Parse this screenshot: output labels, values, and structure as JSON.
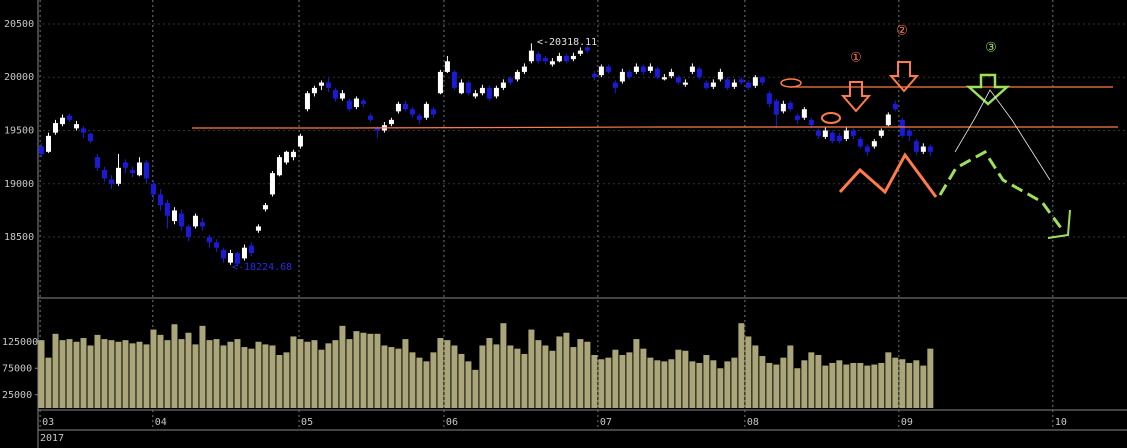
{
  "chart_data": {
    "type": "candlestick",
    "ylim": [
      17928,
      20725
    ],
    "yticks": [
      18500,
      19000,
      19500,
      20000,
      20500
    ],
    "xlim": [
      -0.5,
      155.1
    ],
    "xticks": [
      {
        "value": -0.2,
        "label": "03"
      },
      {
        "value": 15.9,
        "label": "04"
      },
      {
        "value": 36.8,
        "label": "05"
      },
      {
        "value": 57.5,
        "label": "06"
      },
      {
        "value": 79.5,
        "label": "07"
      },
      {
        "value": 100.5,
        "label": "08"
      },
      {
        "value": 122.5,
        "label": "09"
      },
      {
        "value": 144.5,
        "label": "10"
      }
    ],
    "year_label": "2017",
    "grid": true,
    "up_color": "#ffffff",
    "down_color": "#1a1ad8",
    "candles": [
      [
        19350,
        19380,
        19250,
        19280
      ],
      [
        19300,
        19480,
        19290,
        19450
      ],
      [
        19480,
        19600,
        19460,
        19570
      ],
      [
        19560,
        19650,
        19540,
        19620
      ],
      [
        19640,
        19660,
        19580,
        19600
      ],
      [
        19520,
        19590,
        19500,
        19560
      ],
      [
        19520,
        19540,
        19430,
        19480
      ],
      [
        19470,
        19480,
        19380,
        19400
      ],
      [
        19250,
        19280,
        19120,
        19150
      ],
      [
        19130,
        19160,
        19020,
        19050
      ],
      [
        19040,
        19080,
        18950,
        19000
      ],
      [
        19000,
        19280,
        18980,
        19150
      ],
      [
        19200,
        19230,
        19100,
        19150
      ],
      [
        19130,
        19160,
        19060,
        19100
      ],
      [
        19080,
        19250,
        19070,
        19200
      ],
      [
        19200,
        19220,
        19000,
        19050
      ],
      [
        19000,
        19030,
        18850,
        18900
      ],
      [
        18900,
        18950,
        18750,
        18800
      ],
      [
        18820,
        18850,
        18580,
        18700
      ],
      [
        18650,
        18780,
        18620,
        18750
      ],
      [
        18720,
        18760,
        18560,
        18600
      ],
      [
        18600,
        18620,
        18460,
        18500
      ],
      [
        18600,
        18720,
        18580,
        18700
      ],
      [
        18640,
        18680,
        18560,
        18600
      ],
      [
        18500,
        18520,
        18400,
        18450
      ],
      [
        18450,
        18480,
        18360,
        18400
      ],
      [
        18380,
        18400,
        18260,
        18300
      ],
      [
        18260,
        18380,
        18240,
        18350
      ],
      [
        18350,
        18360,
        18224.68,
        18250
      ],
      [
        18300,
        18430,
        18280,
        18400
      ],
      [
        18420,
        18450,
        18320,
        18350
      ],
      [
        18560,
        18620,
        18540,
        18600
      ],
      [
        18760,
        18820,
        18740,
        18800
      ],
      [
        18900,
        19120,
        18880,
        19100
      ],
      [
        19080,
        19270,
        19070,
        19250
      ],
      [
        19200,
        19310,
        19180,
        19300
      ],
      [
        19250,
        19320,
        19220,
        19300
      ],
      [
        19350,
        19470,
        19330,
        19450
      ],
      [
        19700,
        19870,
        19680,
        19850
      ],
      [
        19850,
        19920,
        19820,
        19900
      ],
      [
        19920,
        19970,
        19880,
        19950
      ],
      [
        19950,
        19990,
        19860,
        19900
      ],
      [
        19880,
        19900,
        19770,
        19800
      ],
      [
        19800,
        19880,
        19780,
        19850
      ],
      [
        19780,
        19800,
        19680,
        19700
      ],
      [
        19720,
        19820,
        19700,
        19800
      ],
      [
        19780,
        19800,
        19720,
        19750
      ],
      [
        19640,
        19660,
        19580,
        19600
      ],
      [
        19520,
        19540,
        19430,
        19500
      ],
      [
        19500,
        19580,
        19480,
        19550
      ],
      [
        19560,
        19620,
        19540,
        19600
      ],
      [
        19680,
        19770,
        19660,
        19750
      ],
      [
        19750,
        19780,
        19680,
        19700
      ],
      [
        19700,
        19720,
        19620,
        19650
      ],
      [
        19640,
        19660,
        19560,
        19600
      ],
      [
        19620,
        19770,
        19600,
        19750
      ],
      [
        19700,
        19720,
        19620,
        19650
      ],
      [
        19850,
        20070,
        19840,
        20050
      ],
      [
        20050,
        20200,
        20040,
        20150
      ],
      [
        20050,
        20070,
        19880,
        19900
      ],
      [
        19850,
        19980,
        19840,
        19950
      ],
      [
        19950,
        19970,
        19830,
        19850
      ],
      [
        19820,
        19880,
        19800,
        19850
      ],
      [
        19850,
        19930,
        19830,
        19900
      ],
      [
        19900,
        19920,
        19780,
        19800
      ],
      [
        19820,
        19920,
        19800,
        19900
      ],
      [
        19900,
        19980,
        19880,
        19950
      ],
      [
        19990,
        20010,
        19930,
        19950
      ],
      [
        19980,
        20070,
        19960,
        20050
      ],
      [
        20050,
        20130,
        20030,
        20100
      ],
      [
        20150,
        20318.11,
        20130,
        20250
      ],
      [
        20220,
        20240,
        20130,
        20150
      ],
      [
        20180,
        20200,
        20120,
        20150
      ],
      [
        20120,
        20180,
        20100,
        20150
      ],
      [
        20150,
        20230,
        20140,
        20200
      ],
      [
        20200,
        20220,
        20130,
        20150
      ],
      [
        20170,
        20230,
        20150,
        20200
      ],
      [
        20220,
        20280,
        20200,
        20250
      ],
      [
        20280,
        20290,
        20230,
        20250
      ],
      [
        20030,
        20060,
        19970,
        20000
      ],
      [
        20020,
        20120,
        20000,
        20100
      ],
      [
        20100,
        20120,
        20030,
        20050
      ],
      [
        19950,
        19970,
        19850,
        19900
      ],
      [
        19960,
        20080,
        19940,
        20050
      ],
      [
        20050,
        20070,
        19980,
        20000
      ],
      [
        20050,
        20130,
        20030,
        20100
      ],
      [
        20100,
        20120,
        20020,
        20050
      ],
      [
        20060,
        20130,
        20040,
        20100
      ],
      [
        20080,
        20100,
        19980,
        20000
      ],
      [
        19980,
        20030,
        19970,
        20000
      ],
      [
        20010,
        20080,
        19990,
        20050
      ],
      [
        20000,
        20020,
        19930,
        19950
      ],
      [
        19930,
        19980,
        19910,
        19950
      ],
      [
        20050,
        20130,
        20030,
        20100
      ],
      [
        20080,
        20100,
        19980,
        20000
      ],
      [
        19950,
        19970,
        19880,
        19900
      ],
      [
        19910,
        19980,
        19890,
        19950
      ],
      [
        19980,
        20080,
        19960,
        20050
      ],
      [
        19980,
        20000,
        19880,
        19900
      ],
      [
        19910,
        19980,
        19890,
        19950
      ],
      [
        19980,
        20000,
        19930,
        19950
      ],
      [
        19950,
        19970,
        19880,
        19900
      ],
      [
        19920,
        20020,
        19900,
        20000
      ],
      [
        20000,
        20010,
        19920,
        19950
      ],
      [
        19850,
        19870,
        19720,
        19750
      ],
      [
        19780,
        19800,
        19520,
        19650
      ],
      [
        19680,
        19780,
        19660,
        19750
      ],
      [
        19760,
        19780,
        19680,
        19700
      ],
      [
        19640,
        19660,
        19560,
        19600
      ],
      [
        19620,
        19720,
        19600,
        19700
      ],
      [
        19600,
        19620,
        19520,
        19550
      ],
      [
        19500,
        19520,
        19420,
        19450
      ],
      [
        19440,
        19530,
        19420,
        19500
      ],
      [
        19480,
        19500,
        19380,
        19400
      ],
      [
        19450,
        19480,
        19380,
        19400
      ],
      [
        19420,
        19530,
        19400,
        19500
      ],
      [
        19500,
        19520,
        19420,
        19450
      ],
      [
        19420,
        19440,
        19330,
        19350
      ],
      [
        19350,
        19370,
        19260,
        19300
      ],
      [
        19350,
        19420,
        19330,
        19400
      ],
      [
        19450,
        19520,
        19430,
        19500
      ],
      [
        19550,
        19670,
        19540,
        19650
      ],
      [
        19750,
        19780,
        19680,
        19700
      ],
      [
        19600,
        19620,
        19430,
        19450
      ],
      [
        19500,
        19520,
        19400,
        19450
      ],
      [
        19400,
        19420,
        19270,
        19300
      ],
      [
        19300,
        19380,
        19280,
        19350
      ],
      [
        19350,
        19370,
        19260,
        19300
      ]
    ],
    "volume": {
      "color": "#aaa67a",
      "ylim": [
        0,
        200000
      ],
      "yticks": [
        25000,
        75000,
        125000
      ],
      "values": [
        128000,
        95000,
        140000,
        128000,
        130000,
        125000,
        132000,
        118000,
        138000,
        130000,
        128000,
        125000,
        128000,
        122000,
        125000,
        120000,
        148000,
        138000,
        128000,
        158000,
        130000,
        142000,
        120000,
        155000,
        128000,
        130000,
        118000,
        125000,
        130000,
        115000,
        112000,
        125000,
        120000,
        118000,
        100000,
        105000,
        135000,
        130000,
        125000,
        128000,
        110000,
        122000,
        128000,
        155000,
        130000,
        145000,
        142000,
        140000,
        140000,
        118000,
        115000,
        112000,
        130000,
        105000,
        95000,
        88000,
        105000,
        132000,
        128000,
        118000,
        102000,
        88000,
        72000,
        118000,
        132000,
        120000,
        160000,
        118000,
        112000,
        102000,
        148000,
        128000,
        118000,
        108000,
        135000,
        142000,
        115000,
        130000,
        125000,
        100000,
        92000,
        95000,
        110000,
        100000,
        105000,
        130000,
        112000,
        95000,
        90000,
        88000,
        92000,
        110000,
        108000,
        88000,
        85000,
        100000,
        90000,
        75000,
        88000,
        95000,
        160000,
        135000,
        118000,
        98000,
        85000,
        82000,
        95000,
        118000,
        75000,
        90000,
        105000,
        100000,
        80000,
        85000,
        90000,
        82000,
        85000,
        85000,
        80000,
        82000,
        85000,
        105000,
        95000,
        92000,
        85000,
        90000,
        80000,
        112000
      ]
    },
    "annotations": [
      "<-20318.11",
      "<-18224.68"
    ],
    "markers": [
      "①",
      "②",
      "③"
    ]
  }
}
